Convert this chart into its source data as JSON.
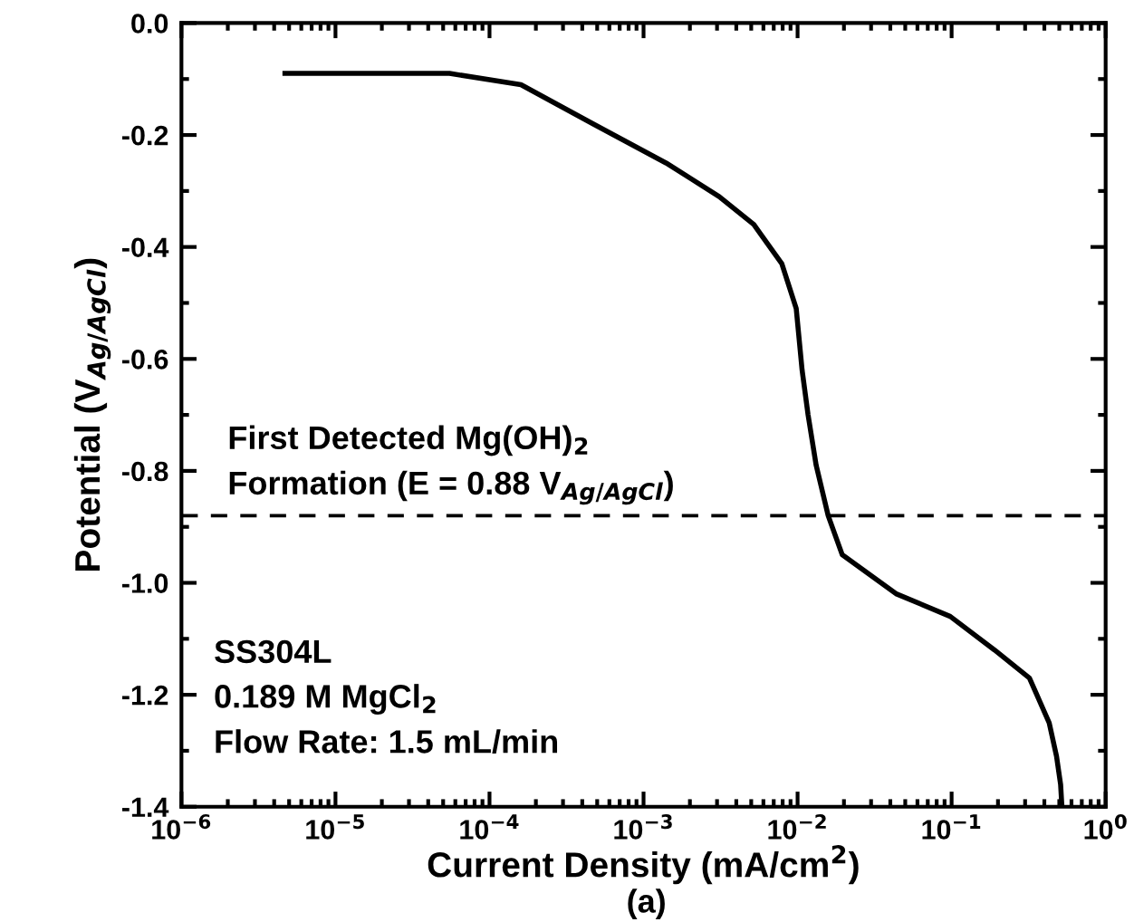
{
  "chart_data": {
    "type": "line",
    "xlabel": "Current Density (mA/cm$^{2}$)",
    "ylabel": "Potential (V$_{Ag/AgCl}$)",
    "log": "x",
    "series": [
      {
        "color": "#000000",
        "x": [
          4.7e-06,
          1.4e-05,
          5.5e-05,
          0.00016,
          0.00047,
          0.0014,
          0.0031,
          0.0052,
          0.0079,
          0.0098,
          0.0107,
          0.0117,
          0.0132,
          0.0158,
          0.0195,
          0.044,
          0.098,
          0.19,
          0.32,
          0.43,
          0.48,
          0.51,
          0.52
        ],
        "values": [
          -0.09,
          -0.09,
          -0.09,
          -0.11,
          -0.18,
          -0.25,
          -0.31,
          -0.36,
          -0.43,
          -0.51,
          -0.62,
          -0.7,
          -0.79,
          -0.88,
          -0.95,
          -1.02,
          -1.06,
          -1.12,
          -1.17,
          -1.25,
          -1.31,
          -1.36,
          -1.4
        ]
      }
    ],
    "xlim": [
      1e-06,
      1
    ],
    "xticks": [
      {
        "value": 1e-06,
        "label": "10$^{−6}$"
      },
      {
        "value": 1e-05,
        "label": "10$^{−5}$"
      },
      {
        "value": 0.0001,
        "label": "10$^{−4}$"
      },
      {
        "value": 0.001,
        "label": "10$^{−3}$"
      },
      {
        "value": 0.01,
        "label": "10$^{−2}$"
      },
      {
        "value": 0.1,
        "label": "10$^{−1}$"
      },
      {
        "value": 1,
        "label": "10$^{0}$"
      }
    ],
    "ylim": [
      -1.4,
      0.0
    ],
    "yticks": [
      {
        "value": 0.0,
        "label": "0.0"
      },
      {
        "value": -0.2,
        "label": "-0.2"
      },
      {
        "value": -0.4,
        "label": "-0.4"
      },
      {
        "value": -0.6,
        "label": "-0.6"
      },
      {
        "value": -0.8,
        "label": "-0.8"
      },
      {
        "value": -1.0,
        "label": "-1.0"
      },
      {
        "value": -1.2,
        "label": "-1.2"
      },
      {
        "value": -1.4,
        "label": "-1.4"
      }
    ],
    "ref_lines": [
      {
        "axis": "y",
        "value": -0.88,
        "color": "#000000",
        "line_style": "dashed"
      }
    ],
    "annotations": [
      "SS304L\n0.189 M MgCl$_{2}$\nFlow Rate: 1.5 mL/min",
      "(a)",
      "First Detected Mg(OH)$_{2}$\nFormation (E = 0.88 V$_{Ag/AgCl}$)"
    ],
    "grid": false,
    "legend": false
  }
}
